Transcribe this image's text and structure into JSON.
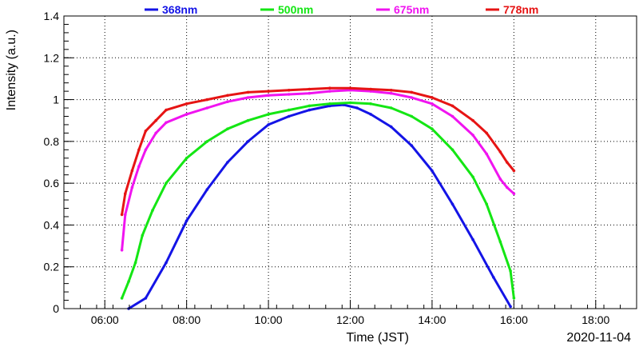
{
  "chart_data": {
    "type": "line",
    "xlabel": "Time (JST)",
    "ylabel": "Intensity (a.u.)",
    "date_label": "2020-11-04",
    "grid": true,
    "legend_position": "top",
    "xlim": [
      "05:00",
      "19:00"
    ],
    "ylim": [
      0,
      1.4
    ],
    "x_ticks": [
      "06:00",
      "08:00",
      "10:00",
      "12:00",
      "14:00",
      "16:00",
      "18:00"
    ],
    "y_ticks": [
      "0",
      "0.2",
      "0.4",
      "0.6",
      "0.8",
      "1",
      "1.2",
      "1.4"
    ],
    "series": [
      {
        "name": "368nm",
        "color": "#1414e6",
        "points": [
          [
            "06:35",
            0.0
          ],
          [
            "07:00",
            0.05
          ],
          [
            "07:30",
            0.22
          ],
          [
            "08:00",
            0.42
          ],
          [
            "08:30",
            0.57
          ],
          [
            "09:00",
            0.7
          ],
          [
            "09:30",
            0.8
          ],
          [
            "10:00",
            0.88
          ],
          [
            "10:30",
            0.92
          ],
          [
            "11:00",
            0.95
          ],
          [
            "11:30",
            0.97
          ],
          [
            "11:50",
            0.975
          ],
          [
            "12:10",
            0.96
          ],
          [
            "12:30",
            0.93
          ],
          [
            "13:00",
            0.87
          ],
          [
            "13:30",
            0.78
          ],
          [
            "14:00",
            0.66
          ],
          [
            "14:30",
            0.5
          ],
          [
            "15:00",
            0.33
          ],
          [
            "15:30",
            0.15
          ],
          [
            "15:55",
            0.01
          ]
        ]
      },
      {
        "name": "500nm",
        "color": "#14e614",
        "points": [
          [
            "06:25",
            0.05
          ],
          [
            "06:35",
            0.13
          ],
          [
            "06:45",
            0.22
          ],
          [
            "06:55",
            0.35
          ],
          [
            "07:10",
            0.47
          ],
          [
            "07:30",
            0.6
          ],
          [
            "08:00",
            0.72
          ],
          [
            "08:30",
            0.8
          ],
          [
            "09:00",
            0.86
          ],
          [
            "09:30",
            0.9
          ],
          [
            "10:00",
            0.93
          ],
          [
            "10:30",
            0.95
          ],
          [
            "11:00",
            0.97
          ],
          [
            "11:30",
            0.98
          ],
          [
            "12:00",
            0.985
          ],
          [
            "12:30",
            0.98
          ],
          [
            "13:00",
            0.96
          ],
          [
            "13:30",
            0.92
          ],
          [
            "14:00",
            0.86
          ],
          [
            "14:30",
            0.76
          ],
          [
            "15:00",
            0.63
          ],
          [
            "15:20",
            0.5
          ],
          [
            "15:40",
            0.32
          ],
          [
            "15:55",
            0.18
          ],
          [
            "16:00",
            0.05
          ]
        ]
      },
      {
        "name": "675nm",
        "color": "#f014f0",
        "points": [
          [
            "06:25",
            0.28
          ],
          [
            "06:30",
            0.45
          ],
          [
            "06:40",
            0.58
          ],
          [
            "06:50",
            0.68
          ],
          [
            "07:00",
            0.76
          ],
          [
            "07:15",
            0.84
          ],
          [
            "07:30",
            0.89
          ],
          [
            "08:00",
            0.93
          ],
          [
            "08:30",
            0.96
          ],
          [
            "09:00",
            0.99
          ],
          [
            "09:30",
            1.01
          ],
          [
            "10:00",
            1.02
          ],
          [
            "10:30",
            1.025
          ],
          [
            "11:00",
            1.03
          ],
          [
            "11:30",
            1.04
          ],
          [
            "12:00",
            1.045
          ],
          [
            "12:30",
            1.04
          ],
          [
            "13:00",
            1.03
          ],
          [
            "13:30",
            1.01
          ],
          [
            "14:00",
            0.98
          ],
          [
            "14:30",
            0.92
          ],
          [
            "15:00",
            0.83
          ],
          [
            "15:20",
            0.74
          ],
          [
            "15:40",
            0.62
          ],
          [
            "15:50",
            0.58
          ],
          [
            "16:00",
            0.55
          ]
        ]
      },
      {
        "name": "778nm",
        "color": "#e61414",
        "points": [
          [
            "06:25",
            0.45
          ],
          [
            "06:30",
            0.55
          ],
          [
            "06:40",
            0.66
          ],
          [
            "06:50",
            0.76
          ],
          [
            "07:00",
            0.85
          ],
          [
            "07:15",
            0.9
          ],
          [
            "07:30",
            0.95
          ],
          [
            "08:00",
            0.98
          ],
          [
            "08:30",
            1.0
          ],
          [
            "09:00",
            1.02
          ],
          [
            "09:30",
            1.035
          ],
          [
            "10:00",
            1.04
          ],
          [
            "10:30",
            1.045
          ],
          [
            "11:00",
            1.05
          ],
          [
            "11:30",
            1.055
          ],
          [
            "12:00",
            1.055
          ],
          [
            "12:30",
            1.05
          ],
          [
            "13:00",
            1.045
          ],
          [
            "13:30",
            1.035
          ],
          [
            "14:00",
            1.01
          ],
          [
            "14:30",
            0.97
          ],
          [
            "15:00",
            0.9
          ],
          [
            "15:20",
            0.84
          ],
          [
            "15:40",
            0.75
          ],
          [
            "15:50",
            0.7
          ],
          [
            "16:00",
            0.66
          ]
        ]
      }
    ]
  }
}
